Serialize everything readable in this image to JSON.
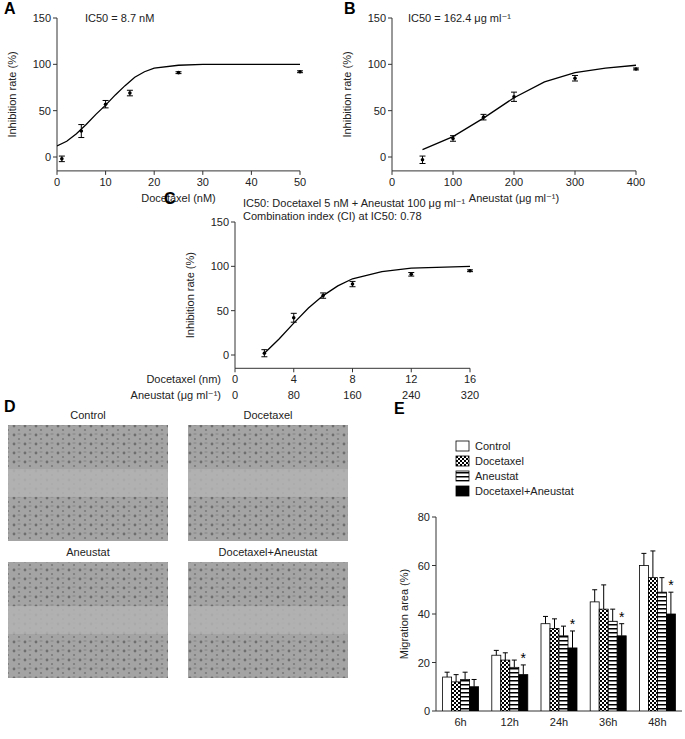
{
  "chart_data": [
    {
      "panel_label": "A",
      "type": "scatter",
      "title": "IC50 = 8.7 nM",
      "x_label": "Docetaxel (nM)",
      "y_label": "Inhibition rate (%)",
      "xlim": [
        0,
        50
      ],
      "xticks": [
        0,
        10,
        20,
        30,
        40,
        50
      ],
      "ylim": [
        -15,
        150
      ],
      "yticks": [
        0,
        50,
        100,
        150
      ],
      "series": [
        {
          "type": "scatter",
          "marker": "circle",
          "color": "#000000",
          "x": [
            1,
            5,
            10,
            15,
            25,
            50
          ],
          "values": [
            -2,
            28,
            57,
            69,
            91,
            92
          ],
          "errors": [
            3,
            7,
            4,
            3,
            1,
            1
          ]
        },
        {
          "type": "line",
          "line_style": "solid",
          "color": "#000000",
          "x": [
            0,
            2,
            4,
            6,
            8,
            10,
            12,
            14,
            16,
            18,
            20,
            25,
            30,
            40,
            50
          ],
          "values": [
            12,
            17,
            25,
            35,
            46,
            56,
            67,
            77,
            86,
            92,
            96,
            99,
            100,
            100,
            100
          ]
        }
      ]
    },
    {
      "panel_label": "B",
      "type": "scatter",
      "title": "IC50 = 162.4 μg ml⁻¹",
      "x_label": "Aneustat (μg ml⁻¹)",
      "y_label": "Inhibition rate (%)",
      "xlim": [
        0,
        400
      ],
      "xticks": [
        0,
        100,
        200,
        300,
        400
      ],
      "ylim": [
        -15,
        150
      ],
      "yticks": [
        0,
        50,
        100,
        150
      ],
      "series": [
        {
          "type": "scatter",
          "marker": "circle",
          "color": "#000000",
          "x": [
            50,
            100,
            150,
            200,
            300,
            400
          ],
          "values": [
            -3,
            20,
            43,
            65,
            85,
            95
          ],
          "errors": [
            4,
            3,
            3,
            5,
            3,
            1
          ]
        },
        {
          "type": "line",
          "line_style": "solid",
          "color": "#000000",
          "x": [
            50,
            100,
            150,
            200,
            250,
            300,
            350,
            400
          ],
          "values": [
            8,
            22,
            42,
            64,
            81,
            91,
            96,
            99
          ]
        }
      ]
    },
    {
      "panel_label": "C",
      "type": "scatter",
      "title": "IC50: Docetaxel 5 nM + Aneustat 100 μg ml⁻¹",
      "subtitle": "Combination index (CI) at IC50: 0.78",
      "x_label": "Docetaxel (nm)",
      "x2_label": "Aneustat (μg ml⁻¹)",
      "y_label": "Inhibition rate (%)",
      "xlim": [
        0,
        16
      ],
      "xticks": [
        0,
        4,
        8,
        12,
        16
      ],
      "x2ticks": [
        0,
        80,
        160,
        240,
        320
      ],
      "ylim": [
        -15,
        150
      ],
      "yticks": [
        0,
        50,
        100,
        150
      ],
      "series": [
        {
          "type": "scatter",
          "marker": "circle",
          "color": "#000000",
          "x": [
            2,
            4,
            6,
            8,
            12,
            16
          ],
          "values": [
            2,
            42,
            67,
            80,
            91,
            95
          ],
          "errors": [
            4,
            5,
            3,
            3,
            2,
            1
          ]
        },
        {
          "type": "line",
          "line_style": "solid",
          "color": "#000000",
          "x": [
            2,
            3,
            4,
            5,
            6,
            7,
            8,
            10,
            12,
            16
          ],
          "values": [
            2,
            18,
            36,
            53,
            67,
            78,
            86,
            94,
            98,
            100
          ]
        }
      ]
    },
    {
      "panel_label": "E",
      "type": "bar",
      "y_label": "Migration area (%)",
      "categories": [
        "6h",
        "12h",
        "24h",
        "36h",
        "48h"
      ],
      "ylim": [
        0,
        80
      ],
      "yticks": [
        0,
        20,
        40,
        60,
        80
      ],
      "legend": "top-left",
      "series": [
        {
          "name": "Control",
          "color": "#ffffff",
          "values": [
            14,
            23,
            36,
            45,
            60
          ],
          "errors": [
            2,
            2,
            3,
            5,
            5
          ]
        },
        {
          "name": "Docetaxel",
          "color": "#000000",
          "values": [
            12,
            21,
            34,
            42,
            55
          ],
          "errors": [
            3,
            3,
            4,
            10,
            11
          ]
        },
        {
          "name": "Aneustat",
          "color": "#000000",
          "values": [
            13,
            18,
            31,
            37,
            49
          ],
          "errors": [
            3,
            3,
            4,
            5,
            6
          ]
        },
        {
          "name": "Docetaxel+Aneustat",
          "color": "#000000",
          "values": [
            10,
            15,
            26,
            31,
            40
          ],
          "errors": [
            3,
            4,
            7,
            5,
            9
          ],
          "annotations": [
            null,
            "*",
            "*",
            "*",
            "*"
          ]
        }
      ]
    }
  ],
  "image_panel": {
    "panel_label": "D",
    "images": [
      {
        "title": "Control"
      },
      {
        "title": "Docetaxel"
      },
      {
        "title": "Aneustat"
      },
      {
        "title": "Docetaxel+Aneustat"
      }
    ]
  }
}
